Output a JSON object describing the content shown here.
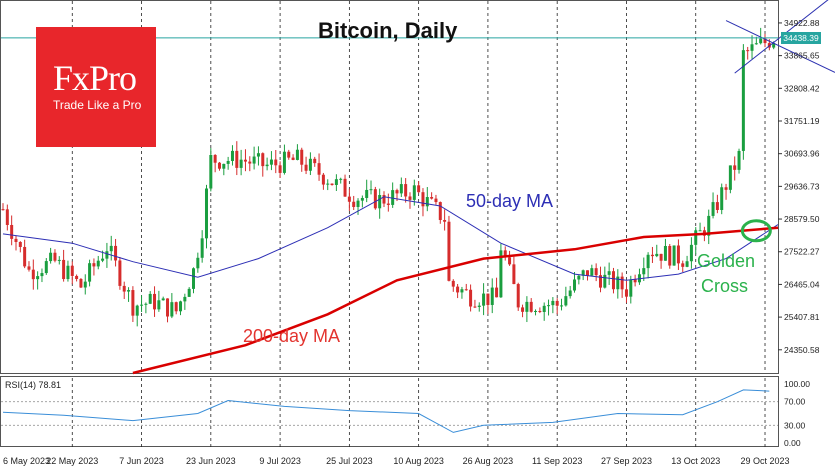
{
  "title": "Bitcoin, Daily",
  "logo": {
    "name": "FxPro",
    "tagline": "Trade Like a Pro"
  },
  "rsi_label": "RSI(14) 78.81",
  "current_price": "34438.39",
  "annotations": {
    "ma50": "50-day MA",
    "ma200": "200-day MA",
    "golden_cross_1": "Golden",
    "golden_cross_2": "Cross"
  },
  "colors": {
    "bull": "#1a9e3f",
    "bear": "#d62c2c",
    "ma50": "#2d2fb5",
    "ma200": "#d90000",
    "rsi": "#3a8ed8",
    "current_price_line": "#27a5a0",
    "golden_cross": "#2bb24c",
    "triangle": "#2a2fb0",
    "logo_bg": "#e8262b"
  },
  "chart_data": [
    {
      "type": "candlestick",
      "title": "Bitcoin, Daily",
      "y_axis_ticks": [
        34922.88,
        33865.65,
        32808.42,
        31751.19,
        30693.96,
        29636.73,
        28579.5,
        27522.27,
        26465.04,
        25407.81,
        24350.58
      ],
      "ylim": [
        23600,
        35600
      ],
      "x_axis_ticks": [
        "6 May 2023",
        "22 May 2023",
        "7 Jun 2023",
        "23 Jun 2023",
        "9 Jul 2023",
        "25 Jul 2023",
        "10 Aug 2023",
        "26 Aug 2023",
        "11 Sep 2023",
        "27 Sep 2023",
        "13 Oct 2023",
        "29 Oct 2023"
      ],
      "x_range": [
        "2023-05-06",
        "2023-11-01"
      ],
      "current_price": 34438.39,
      "close_series": {
        "dates": [
          "2023-05-06",
          "2023-05-12",
          "2023-05-18",
          "2023-05-24",
          "2023-05-30",
          "2023-06-05",
          "2023-06-10",
          "2023-06-15",
          "2023-06-19",
          "2023-06-21",
          "2023-06-23",
          "2023-06-30",
          "2023-07-06",
          "2023-07-13",
          "2023-07-20",
          "2023-07-26",
          "2023-08-01",
          "2023-08-09",
          "2023-08-16",
          "2023-08-17",
          "2023-08-22",
          "2023-08-28",
          "2023-08-29",
          "2023-09-02",
          "2023-09-11",
          "2023-09-18",
          "2023-09-27",
          "2023-10-02",
          "2023-10-10",
          "2023-10-16",
          "2023-10-20",
          "2023-10-23",
          "2023-10-24",
          "2023-10-31"
        ],
        "values": [
          28900,
          26900,
          27200,
          26400,
          27700,
          25800,
          25900,
          25600,
          26900,
          28300,
          30500,
          30500,
          30300,
          30500,
          29900,
          29300,
          29200,
          29500,
          28600,
          26500,
          26100,
          26000,
          27700,
          25900,
          25800,
          26900,
          26300,
          27600,
          27300,
          28500,
          29700,
          30600,
          33900,
          34450
        ]
      },
      "series": [
        {
          "name": "50-day MA",
          "dates": [
            "2023-05-06",
            "2023-05-22",
            "2023-06-05",
            "2023-06-20",
            "2023-07-04",
            "2023-07-20",
            "2023-08-02",
            "2023-08-15",
            "2023-08-29",
            "2023-09-15",
            "2023-09-27",
            "2023-10-09",
            "2023-10-20",
            "2023-11-01"
          ],
          "values": [
            28100,
            27800,
            27200,
            26700,
            27300,
            28300,
            29300,
            29000,
            27800,
            26800,
            26600,
            26800,
            27300,
            28400
          ]
        },
        {
          "name": "200-day MA",
          "dates": [
            "2023-06-05",
            "2023-07-01",
            "2023-07-20",
            "2023-08-05",
            "2023-08-25",
            "2023-09-15",
            "2023-10-01",
            "2023-10-15",
            "2023-11-01"
          ],
          "values": [
            23600,
            24500,
            25500,
            26600,
            27300,
            27600,
            28000,
            28100,
            28300
          ]
        }
      ],
      "triangle": {
        "upper_line": {
          "dates": [
            "2023-10-20",
            "2023-11-01"
          ],
          "values": [
            35000,
            34200
          ]
        },
        "lower_line": {
          "dates": [
            "2023-10-22",
            "2023-11-01"
          ],
          "values": [
            33300,
            34400
          ]
        }
      }
    },
    {
      "type": "line",
      "name": "RSI(14)",
      "y_axis_ticks": [
        100.0,
        70.0,
        30.0,
        0.0
      ],
      "ylim": [
        0,
        100
      ],
      "last_value": 78.81,
      "dates": [
        "2023-05-06",
        "2023-05-20",
        "2023-06-05",
        "2023-06-20",
        "2023-06-27",
        "2023-07-10",
        "2023-07-25",
        "2023-08-10",
        "2023-08-18",
        "2023-08-25",
        "2023-09-10",
        "2023-09-25",
        "2023-10-10",
        "2023-10-18",
        "2023-10-24",
        "2023-10-30"
      ],
      "values": [
        52,
        47,
        38,
        50,
        72,
        62,
        55,
        50,
        18,
        30,
        35,
        50,
        48,
        70,
        90,
        88
      ]
    }
  ]
}
